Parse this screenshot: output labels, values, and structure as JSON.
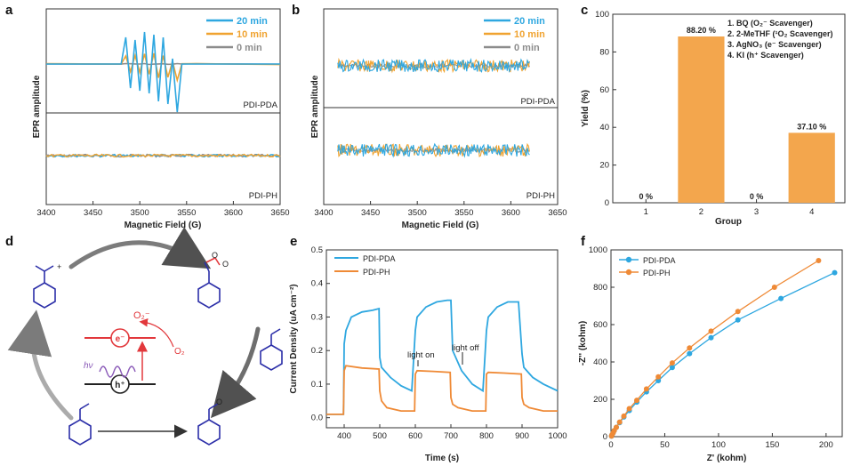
{
  "chart_data": [
    {
      "panel": "a",
      "type": "line",
      "xlabel": "Magnetic Field (G)",
      "ylabel": "EPR amplitude",
      "x_ticks": [
        3400,
        3450,
        3500,
        3550,
        3600,
        3650
      ],
      "xlim": [
        3400,
        3650
      ],
      "legend": [
        "20 min",
        "10 min",
        "0 min"
      ],
      "legend_colors": [
        "#2ea7e0",
        "#f0a330",
        "#8c8c8c"
      ],
      "subpanels": [
        "PDI-PDA",
        "PDI-PH"
      ],
      "top_series": {
        "x": [
          3400,
          3480,
          3485,
          3490,
          3495,
          3500,
          3505,
          3510,
          3515,
          3520,
          3525,
          3530,
          3535,
          3540,
          3545,
          3560,
          3650
        ],
        "20 min": [
          0,
          0,
          10,
          -9,
          9,
          -10,
          12,
          -11,
          11,
          -14,
          10,
          -15,
          2,
          -18,
          0,
          0,
          0
        ],
        "10 min": [
          0,
          0,
          3,
          -3,
          3,
          -3,
          4,
          -4,
          4,
          -5,
          3,
          -5,
          1,
          -6,
          0,
          0,
          0
        ],
        "0 min": [
          0,
          0,
          0,
          0,
          0,
          0,
          0,
          0,
          0,
          0,
          0,
          0,
          0,
          0,
          0,
          0,
          0
        ]
      },
      "bottom_series_note": "noise only"
    },
    {
      "panel": "b",
      "type": "line",
      "xlabel": "Magnetic Field (G)",
      "ylabel": "EPR amplitude",
      "x_ticks": [
        3400,
        3450,
        3500,
        3550,
        3600,
        3650
      ],
      "xlim": [
        3400,
        3650
      ],
      "data_range": [
        3415,
        3620
      ],
      "legend": [
        "20 min",
        "10 min",
        "0 min"
      ],
      "legend_colors": [
        "#2ea7e0",
        "#f0a330",
        "#8c8c8c"
      ],
      "subpanels": [
        "PDI-PDA",
        "PDI-PH"
      ]
    },
    {
      "panel": "c",
      "type": "bar",
      "xlabel": "Group",
      "ylabel": "Yield (%)",
      "categories": [
        "1",
        "2",
        "3",
        "4"
      ],
      "values": [
        0,
        88.2,
        0,
        37.1
      ],
      "value_labels": [
        "0 %",
        "88.20 %",
        "0 %",
        "37.10 %"
      ],
      "ylim": [
        0,
        100
      ],
      "y_ticks": [
        0,
        20,
        40,
        60,
        80,
        100
      ],
      "bar_color": "#f3a64d",
      "notes": [
        "1. BQ (O₂⁻ Scavenger)",
        "2. 2-MeTHF (¹O₂ Scavenger)",
        "3. AgNO₃ (e⁻ Scavenger)",
        "4. KI (h⁺ Scavenger)"
      ]
    },
    {
      "panel": "d",
      "type": "diagram",
      "labels": {
        "superoxide": "O₂⁻",
        "oxygen": "O₂",
        "electron": "e⁻",
        "hole": "h⁺",
        "light": "hν"
      }
    },
    {
      "panel": "e",
      "type": "line",
      "xlabel": "Time (s)",
      "ylabel": "Current Density (uA cm⁻²)",
      "x_ticks": [
        400,
        500,
        600,
        700,
        800,
        900,
        1000
      ],
      "y_ticks": [
        0.0,
        0.1,
        0.2,
        0.3,
        0.4,
        0.5
      ],
      "xlim": [
        350,
        1000
      ],
      "ylim": [
        -0.03,
        0.5
      ],
      "annotations": [
        "light on",
        "light off"
      ],
      "series": [
        {
          "name": "PDI-PDA",
          "color": "#2ea7e0",
          "x": [
            350,
            398,
            400,
            405,
            420,
            450,
            480,
            498,
            500,
            505,
            530,
            560,
            590,
            600,
            605,
            630,
            660,
            690,
            700,
            705,
            730,
            760,
            790,
            800,
            805,
            830,
            860,
            890,
            900,
            905,
            930,
            960,
            1000
          ],
          "y": [
            0.01,
            0.01,
            0.22,
            0.26,
            0.3,
            0.315,
            0.32,
            0.325,
            0.18,
            0.15,
            0.12,
            0.095,
            0.08,
            0.26,
            0.3,
            0.33,
            0.345,
            0.35,
            0.35,
            0.2,
            0.14,
            0.1,
            0.08,
            0.26,
            0.3,
            0.33,
            0.345,
            0.345,
            0.19,
            0.15,
            0.12,
            0.1,
            0.08
          ]
        },
        {
          "name": "PDI-PH",
          "color": "#ef8a36",
          "x": [
            350,
            398,
            400,
            405,
            450,
            498,
            500,
            505,
            520,
            560,
            598,
            600,
            605,
            650,
            698,
            700,
            705,
            720,
            760,
            798,
            800,
            805,
            850,
            898,
            900,
            905,
            920,
            960,
            1000
          ],
          "y": [
            0.01,
            0.01,
            0.14,
            0.155,
            0.148,
            0.145,
            0.08,
            0.05,
            0.03,
            0.02,
            0.02,
            0.13,
            0.14,
            0.138,
            0.135,
            0.06,
            0.04,
            0.03,
            0.02,
            0.02,
            0.13,
            0.135,
            0.133,
            0.13,
            0.06,
            0.04,
            0.03,
            0.02,
            0.02
          ]
        }
      ]
    },
    {
      "panel": "f",
      "type": "scatter",
      "xlabel": "Z' (kohm)",
      "ylabel": "-Z'' (kohm)",
      "x_ticks": [
        0,
        50,
        100,
        150,
        200
      ],
      "y_ticks": [
        0,
        200,
        400,
        600,
        800,
        1000
      ],
      "xlim": [
        0,
        215
      ],
      "ylim": [
        0,
        1000
      ],
      "series": [
        {
          "name": "PDI-PDA",
          "color": "#2ea7e0",
          "x": [
            0.5,
            1,
            2,
            3,
            5,
            8,
            12,
            17,
            24,
            33,
            44,
            57,
            73,
            93,
            118,
            158,
            208
          ],
          "y": [
            3,
            10,
            20,
            32,
            50,
            75,
            105,
            140,
            185,
            240,
            300,
            370,
            445,
            530,
            625,
            740,
            878
          ]
        },
        {
          "name": "PDI-PH",
          "color": "#ef8a36",
          "x": [
            0.5,
            1,
            2,
            3,
            5,
            8,
            12,
            17,
            24,
            33,
            44,
            57,
            73,
            93,
            118,
            152,
            193
          ],
          "y": [
            3,
            10,
            20,
            32,
            50,
            78,
            110,
            150,
            195,
            255,
            320,
            395,
            475,
            565,
            670,
            800,
            943
          ]
        }
      ]
    }
  ],
  "panel_letters": [
    "a",
    "b",
    "c",
    "d",
    "e",
    "f"
  ]
}
